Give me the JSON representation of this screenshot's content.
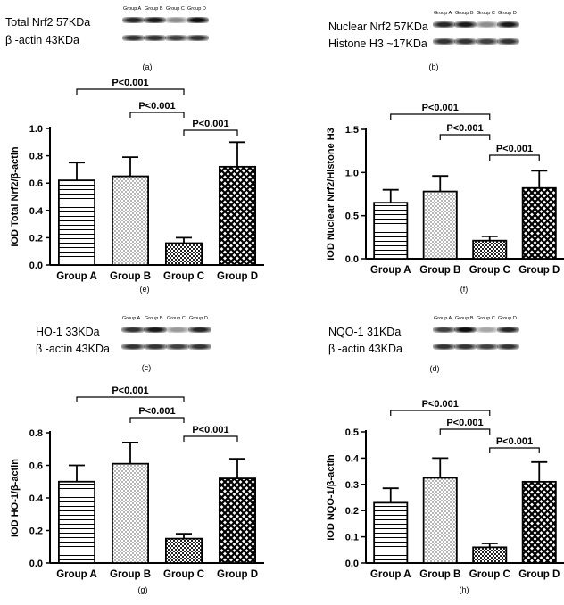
{
  "panel_labels": {
    "a": "(a)",
    "b": "(b)",
    "c": "(c)",
    "d": "(d)",
    "e": "(e)",
    "f": "(f)",
    "g": "(g)",
    "h": "(h)"
  },
  "blots": {
    "a": {
      "lanes": [
        "Group A",
        "Group B",
        "Group C",
        "Group D"
      ],
      "rows": [
        {
          "label": "Total Nrf2  57KDa",
          "intensity": [
            0.85,
            0.9,
            0.45,
            0.95
          ]
        },
        {
          "label": "β -actin  43KDa",
          "intensity": [
            0.8,
            0.8,
            0.75,
            0.8
          ]
        }
      ]
    },
    "b": {
      "lanes": [
        "Group A",
        "Group B",
        "Group C",
        "Group D"
      ],
      "rows": [
        {
          "label": "Nuclear Nrf2  57KDa",
          "intensity": [
            0.85,
            0.9,
            0.45,
            0.9
          ]
        },
        {
          "label": "Histone H3  ~17KDa",
          "intensity": [
            0.8,
            0.8,
            0.75,
            0.8
          ]
        }
      ]
    },
    "c": {
      "lanes": [
        "Group A",
        "Group B",
        "Group C",
        "Group D"
      ],
      "rows": [
        {
          "label": "HO-1   33KDa",
          "intensity": [
            0.8,
            0.9,
            0.4,
            0.85
          ]
        },
        {
          "label": "β -actin  43KDa",
          "intensity": [
            0.8,
            0.8,
            0.75,
            0.8
          ]
        }
      ]
    },
    "d": {
      "lanes": [
        "Group A",
        "Group B",
        "Group C",
        "Group D"
      ],
      "rows": [
        {
          "label": "NQO-1  31KDa",
          "intensity": [
            0.75,
            0.95,
            0.35,
            0.85
          ]
        },
        {
          "label": "β -actin  43KDa",
          "intensity": [
            0.8,
            0.8,
            0.75,
            0.8
          ]
        }
      ]
    }
  },
  "chart_data": [
    {
      "id": "e",
      "type": "bar",
      "categories": [
        "Group A",
        "Group B",
        "Group C",
        "Group D"
      ],
      "values": [
        0.62,
        0.65,
        0.16,
        0.72
      ],
      "errors": [
        0.13,
        0.14,
        0.04,
        0.18
      ],
      "ylabel": "IOD Total Nrf2/β-actin",
      "ylim": [
        0,
        1.0
      ],
      "yticks": [
        "0.0",
        "0.2",
        "0.4",
        "0.6",
        "0.8",
        "1.0"
      ],
      "patterns": [
        "hstripe",
        "dots",
        "checker",
        "crosshatch"
      ],
      "comparisons": [
        {
          "from": 0,
          "to": 2,
          "label": "P<0.001"
        },
        {
          "from": 1,
          "to": 2,
          "label": "P<0.001"
        },
        {
          "from": 2,
          "to": 3,
          "label": "P<0.001"
        }
      ]
    },
    {
      "id": "f",
      "type": "bar",
      "categories": [
        "Group A",
        "Group B",
        "Group C",
        "Group D"
      ],
      "values": [
        0.65,
        0.78,
        0.21,
        0.82
      ],
      "errors": [
        0.15,
        0.18,
        0.05,
        0.2
      ],
      "ylabel": "IOD Nuclear Nrf2/Histone H3",
      "ylim": [
        0,
        1.5
      ],
      "yticks": [
        "0.0",
        "0.5",
        "1.0",
        "1.5"
      ],
      "patterns": [
        "hstripe",
        "dots",
        "checker",
        "crosshatch"
      ],
      "comparisons": [
        {
          "from": 0,
          "to": 2,
          "label": "P<0.001"
        },
        {
          "from": 1,
          "to": 2,
          "label": "P<0.001"
        },
        {
          "from": 2,
          "to": 3,
          "label": "P<0.001"
        }
      ]
    },
    {
      "id": "g",
      "type": "bar",
      "categories": [
        "Group A",
        "Group B",
        "Group C",
        "Group D"
      ],
      "values": [
        0.5,
        0.61,
        0.15,
        0.52
      ],
      "errors": [
        0.1,
        0.13,
        0.03,
        0.12
      ],
      "ylabel": "IOD HO-1/β-actin",
      "ylim": [
        0,
        0.8
      ],
      "yticks": [
        "0.0",
        "0.2",
        "0.4",
        "0.6",
        "0.8"
      ],
      "patterns": [
        "hstripe",
        "dots",
        "checker",
        "crosshatch"
      ],
      "comparisons": [
        {
          "from": 0,
          "to": 2,
          "label": "P<0.001"
        },
        {
          "from": 1,
          "to": 2,
          "label": "P<0.001"
        },
        {
          "from": 2,
          "to": 3,
          "label": "P<0.001"
        }
      ]
    },
    {
      "id": "h",
      "type": "bar",
      "categories": [
        "Group A",
        "Group B",
        "Group C",
        "Group D"
      ],
      "values": [
        0.23,
        0.325,
        0.06,
        0.31
      ],
      "errors": [
        0.055,
        0.075,
        0.015,
        0.075
      ],
      "ylabel": "IOD NQO-1/β-actin",
      "ylim": [
        0,
        0.5
      ],
      "yticks": [
        "0.0",
        "0.1",
        "0.2",
        "0.3",
        "0.4",
        "0.5"
      ],
      "patterns": [
        "hstripe",
        "dots",
        "checker",
        "crosshatch"
      ],
      "comparisons": [
        {
          "from": 0,
          "to": 2,
          "label": "P<0.001"
        },
        {
          "from": 1,
          "to": 2,
          "label": "P<0.001"
        },
        {
          "from": 2,
          "to": 3,
          "label": "P<0.001"
        }
      ]
    }
  ]
}
